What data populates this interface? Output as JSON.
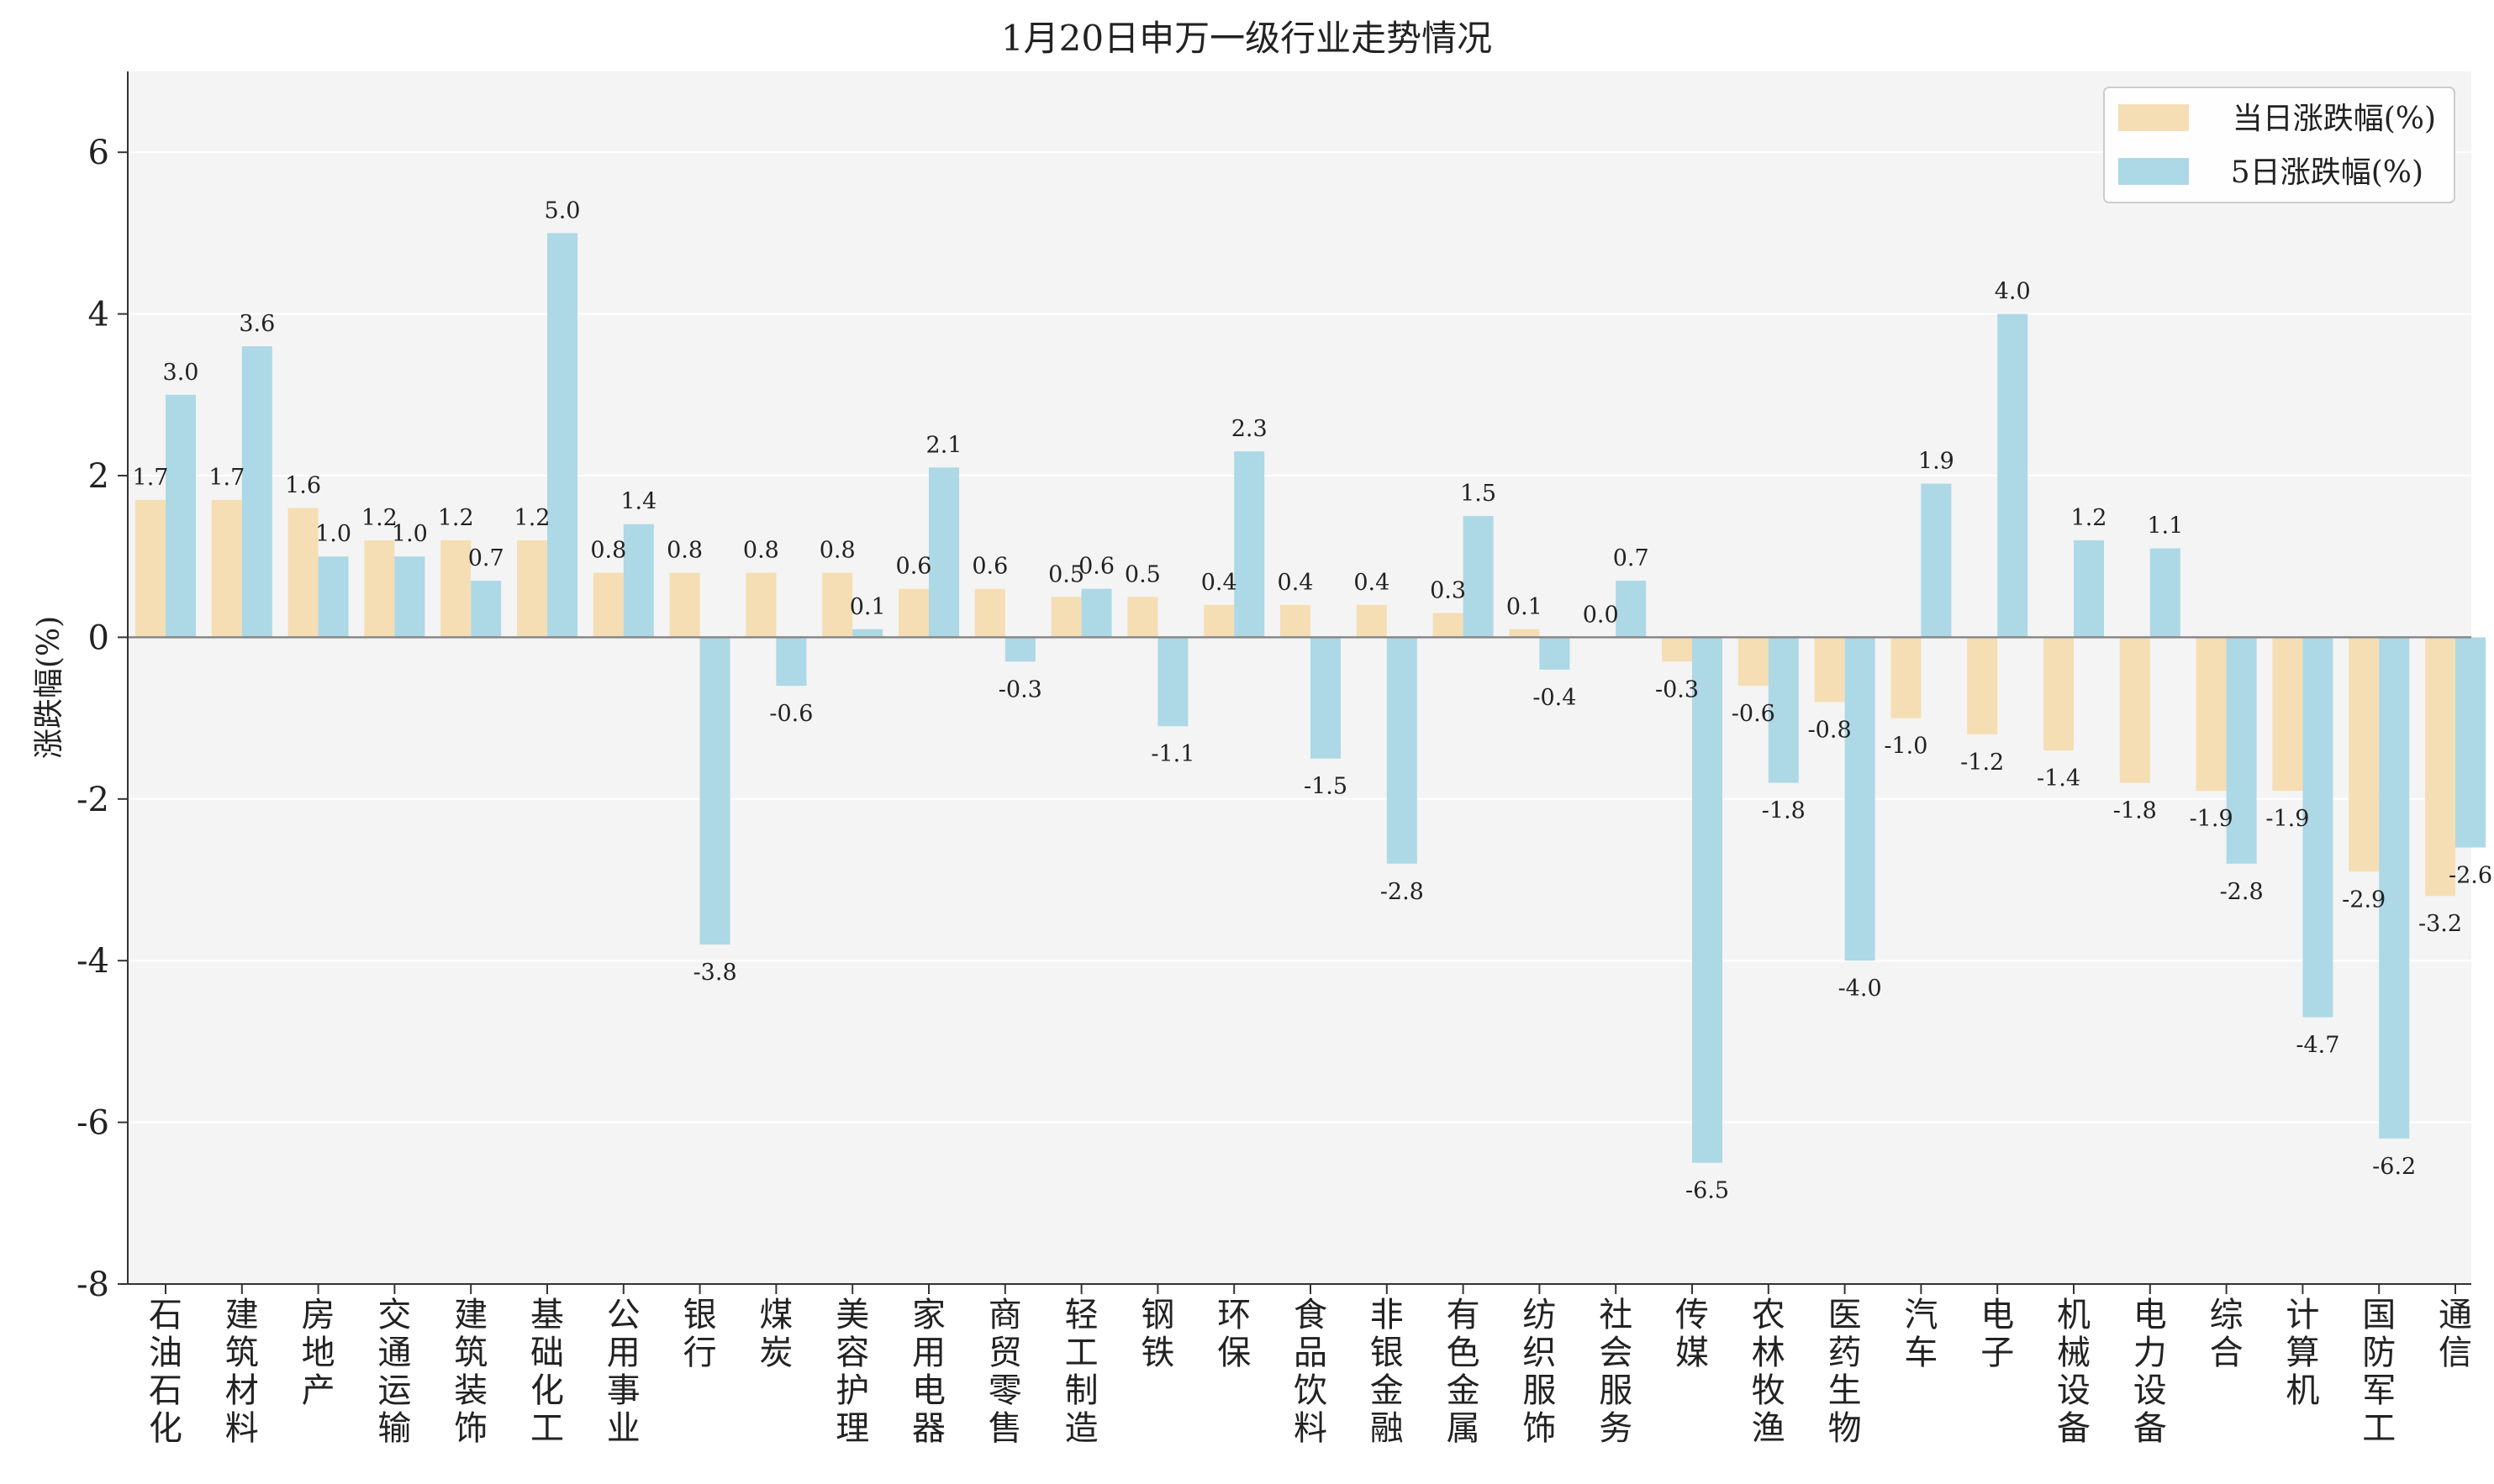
{
  "chart_data": {
    "type": "bar",
    "title": "1月20日申万一级行业走势情况",
    "xlabel": "",
    "ylabel": "涨跌幅(%)",
    "ylim": [
      -8,
      7
    ],
    "yticks": [
      -8,
      -6,
      -4,
      -2,
      0,
      2,
      4,
      6
    ],
    "grid": true,
    "legend_position": "top-right",
    "categories": [
      "石油石化",
      "建筑材料",
      "房地产",
      "交通运输",
      "建筑装饰",
      "基础化工",
      "公用事业",
      "银行",
      "煤炭",
      "美容护理",
      "家用电器",
      "商贸零售",
      "轻工制造",
      "钢铁",
      "环保",
      "食品饮料",
      "非银金融",
      "有色金属",
      "纺织服饰",
      "社会服务",
      "传媒",
      "农林牧渔",
      "医药生物",
      "汽车",
      "电子",
      "机械设备",
      "电力设备",
      "综合",
      "计算机",
      "国防军工",
      "通信"
    ],
    "series": [
      {
        "name": "当日涨跌幅(%)",
        "color": "#f5deb3",
        "values": [
          1.7,
          1.7,
          1.6,
          1.2,
          1.2,
          1.2,
          0.8,
          0.8,
          0.8,
          0.8,
          0.6,
          0.6,
          0.5,
          0.5,
          0.4,
          0.4,
          0.4,
          0.3,
          0.1,
          0.0,
          -0.3,
          -0.6,
          -0.8,
          -1.0,
          -1.2,
          -1.4,
          -1.8,
          -1.9,
          -1.9,
          -2.9,
          -3.2
        ]
      },
      {
        "name": "5日涨跌幅(%)",
        "color": "#add8e6",
        "values": [
          3.0,
          3.6,
          1.0,
          1.0,
          0.7,
          5.0,
          1.4,
          -3.8,
          -0.6,
          0.1,
          2.1,
          -0.3,
          0.6,
          -1.1,
          2.3,
          -1.5,
          -2.8,
          1.5,
          -0.4,
          0.7,
          -6.5,
          -1.8,
          -4.0,
          1.9,
          4.0,
          1.2,
          1.1,
          -2.8,
          -4.7,
          -6.2,
          -2.6
        ]
      }
    ]
  }
}
